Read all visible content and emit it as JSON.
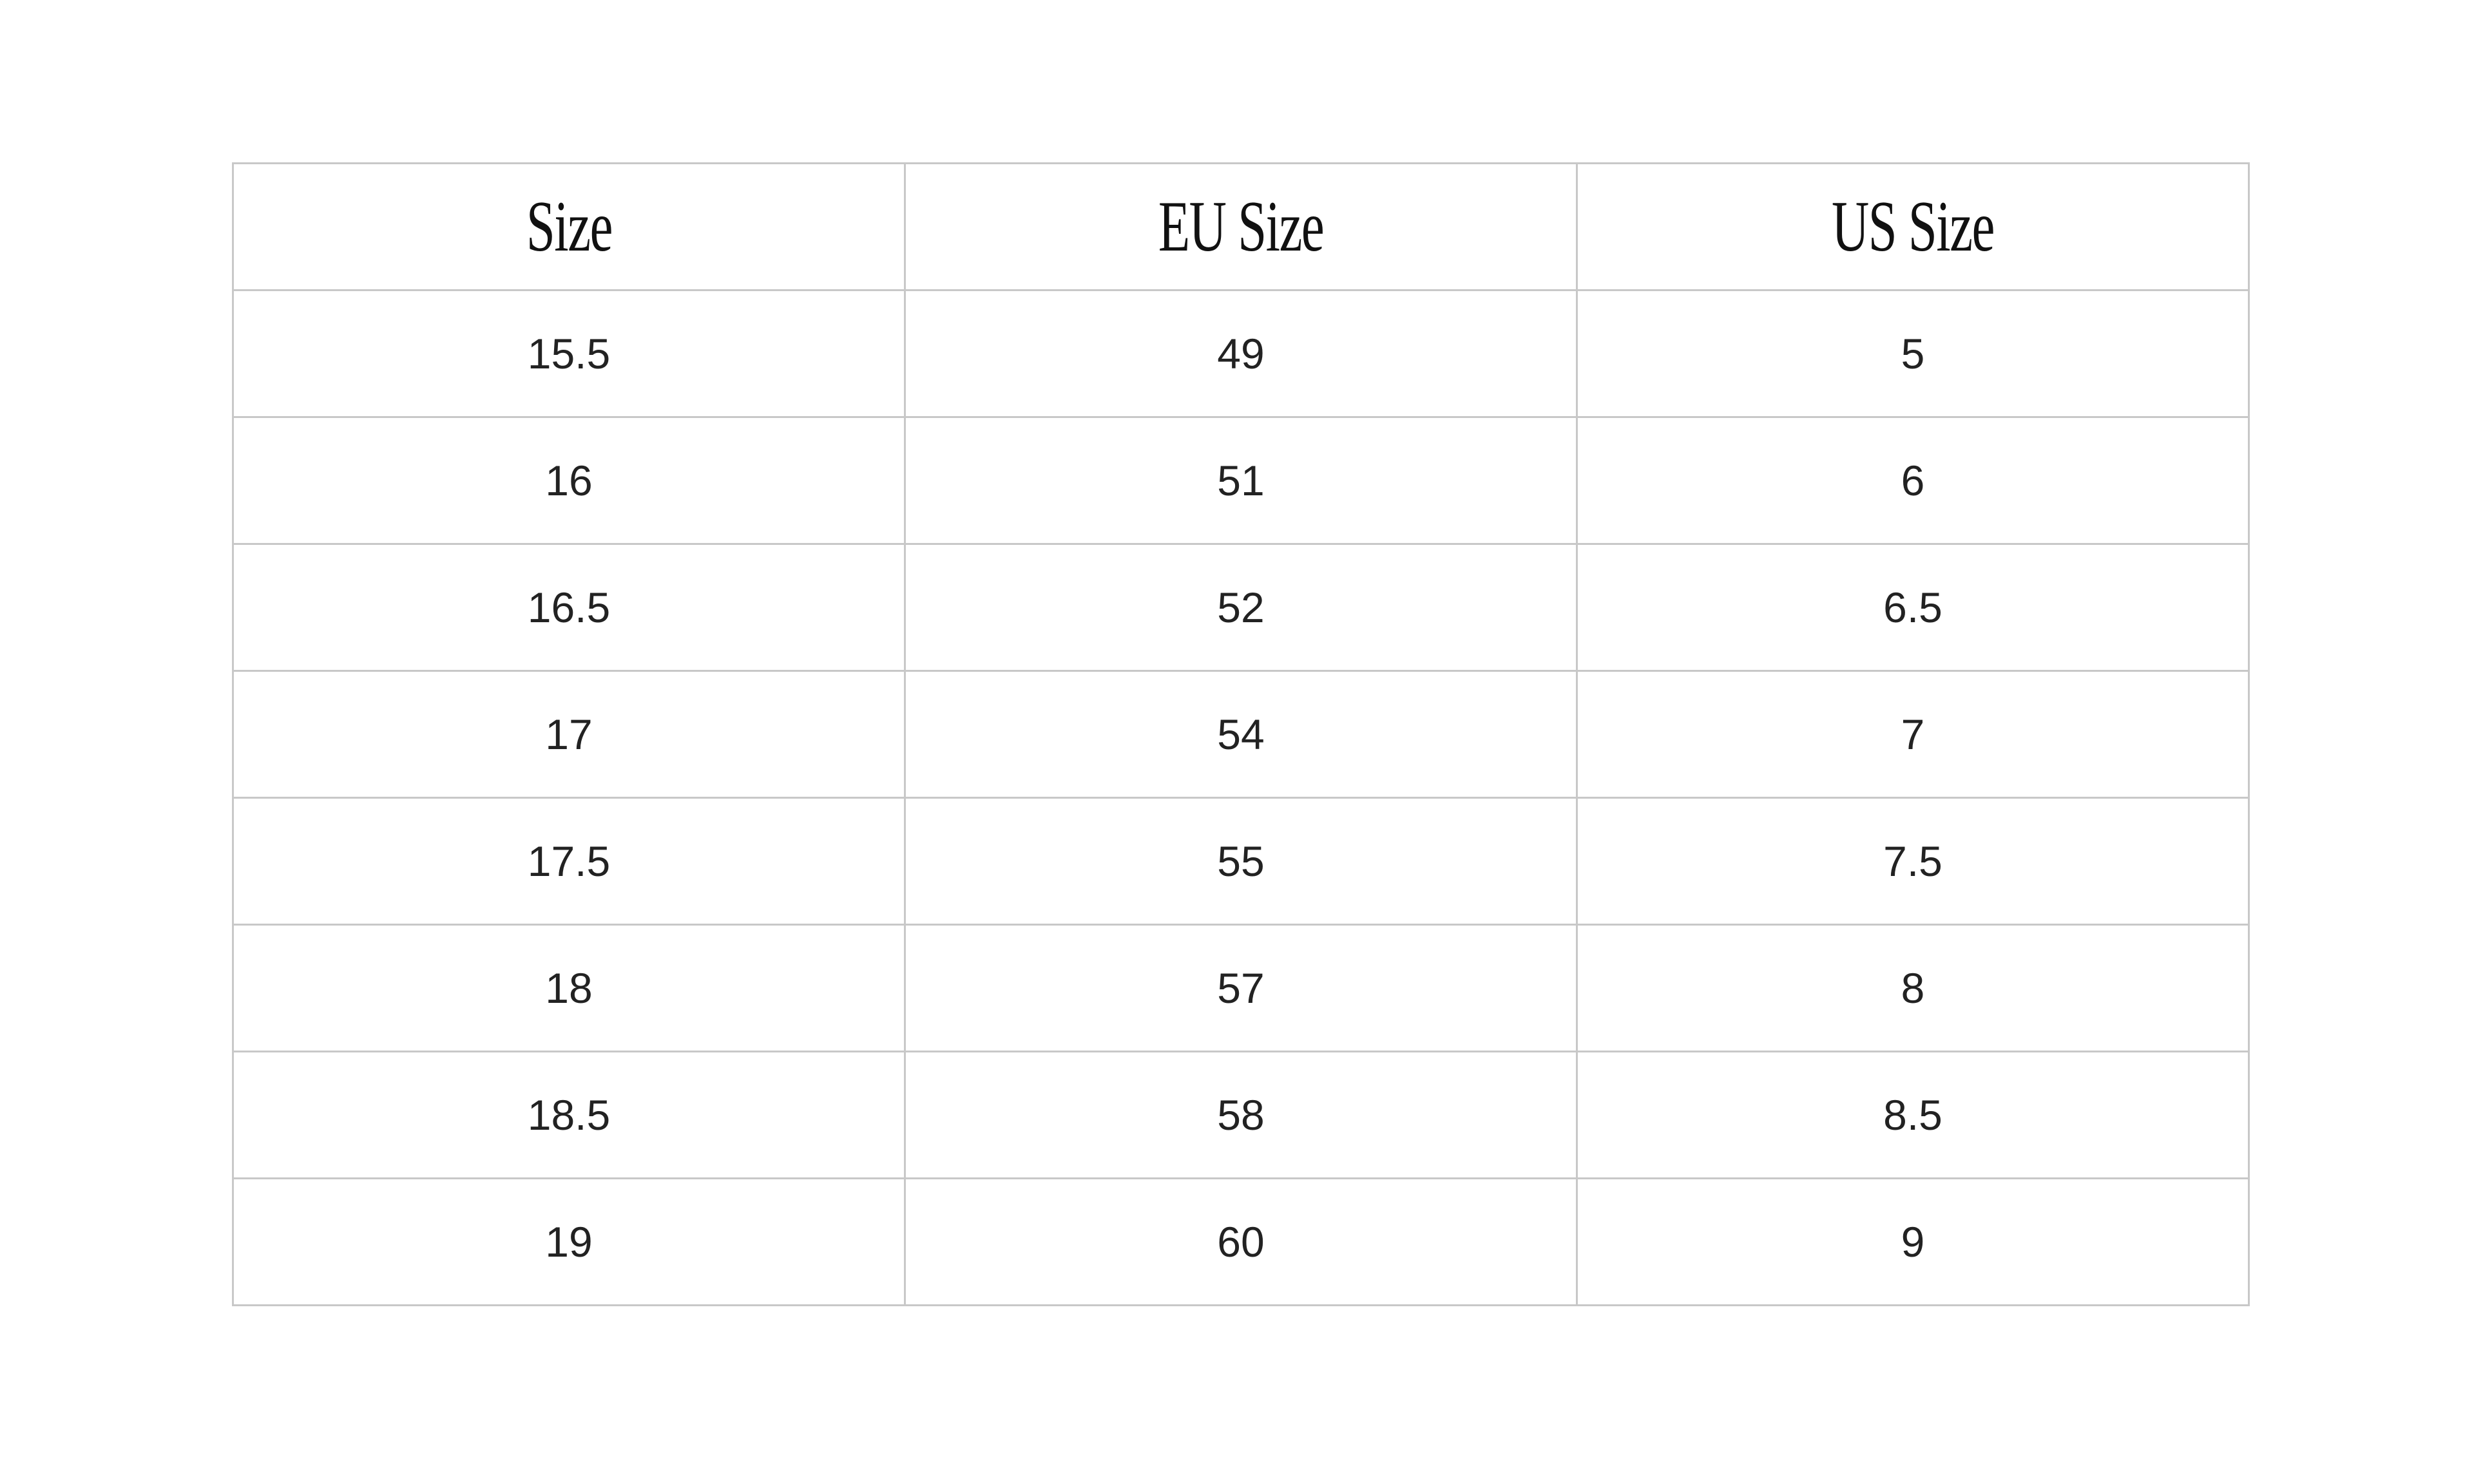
{
  "table": {
    "headers": [
      "Size",
      "EU Size",
      "US Size"
    ],
    "rows": [
      [
        "15.5",
        "49",
        "5"
      ],
      [
        "16",
        "51",
        "6"
      ],
      [
        "16.5",
        "52",
        "6.5"
      ],
      [
        "17",
        "54",
        "7"
      ],
      [
        "17.5",
        "55",
        "7.5"
      ],
      [
        "18",
        "57",
        "8"
      ],
      [
        "18.5",
        "58",
        "8.5"
      ],
      [
        "19",
        "60",
        "9"
      ]
    ]
  }
}
